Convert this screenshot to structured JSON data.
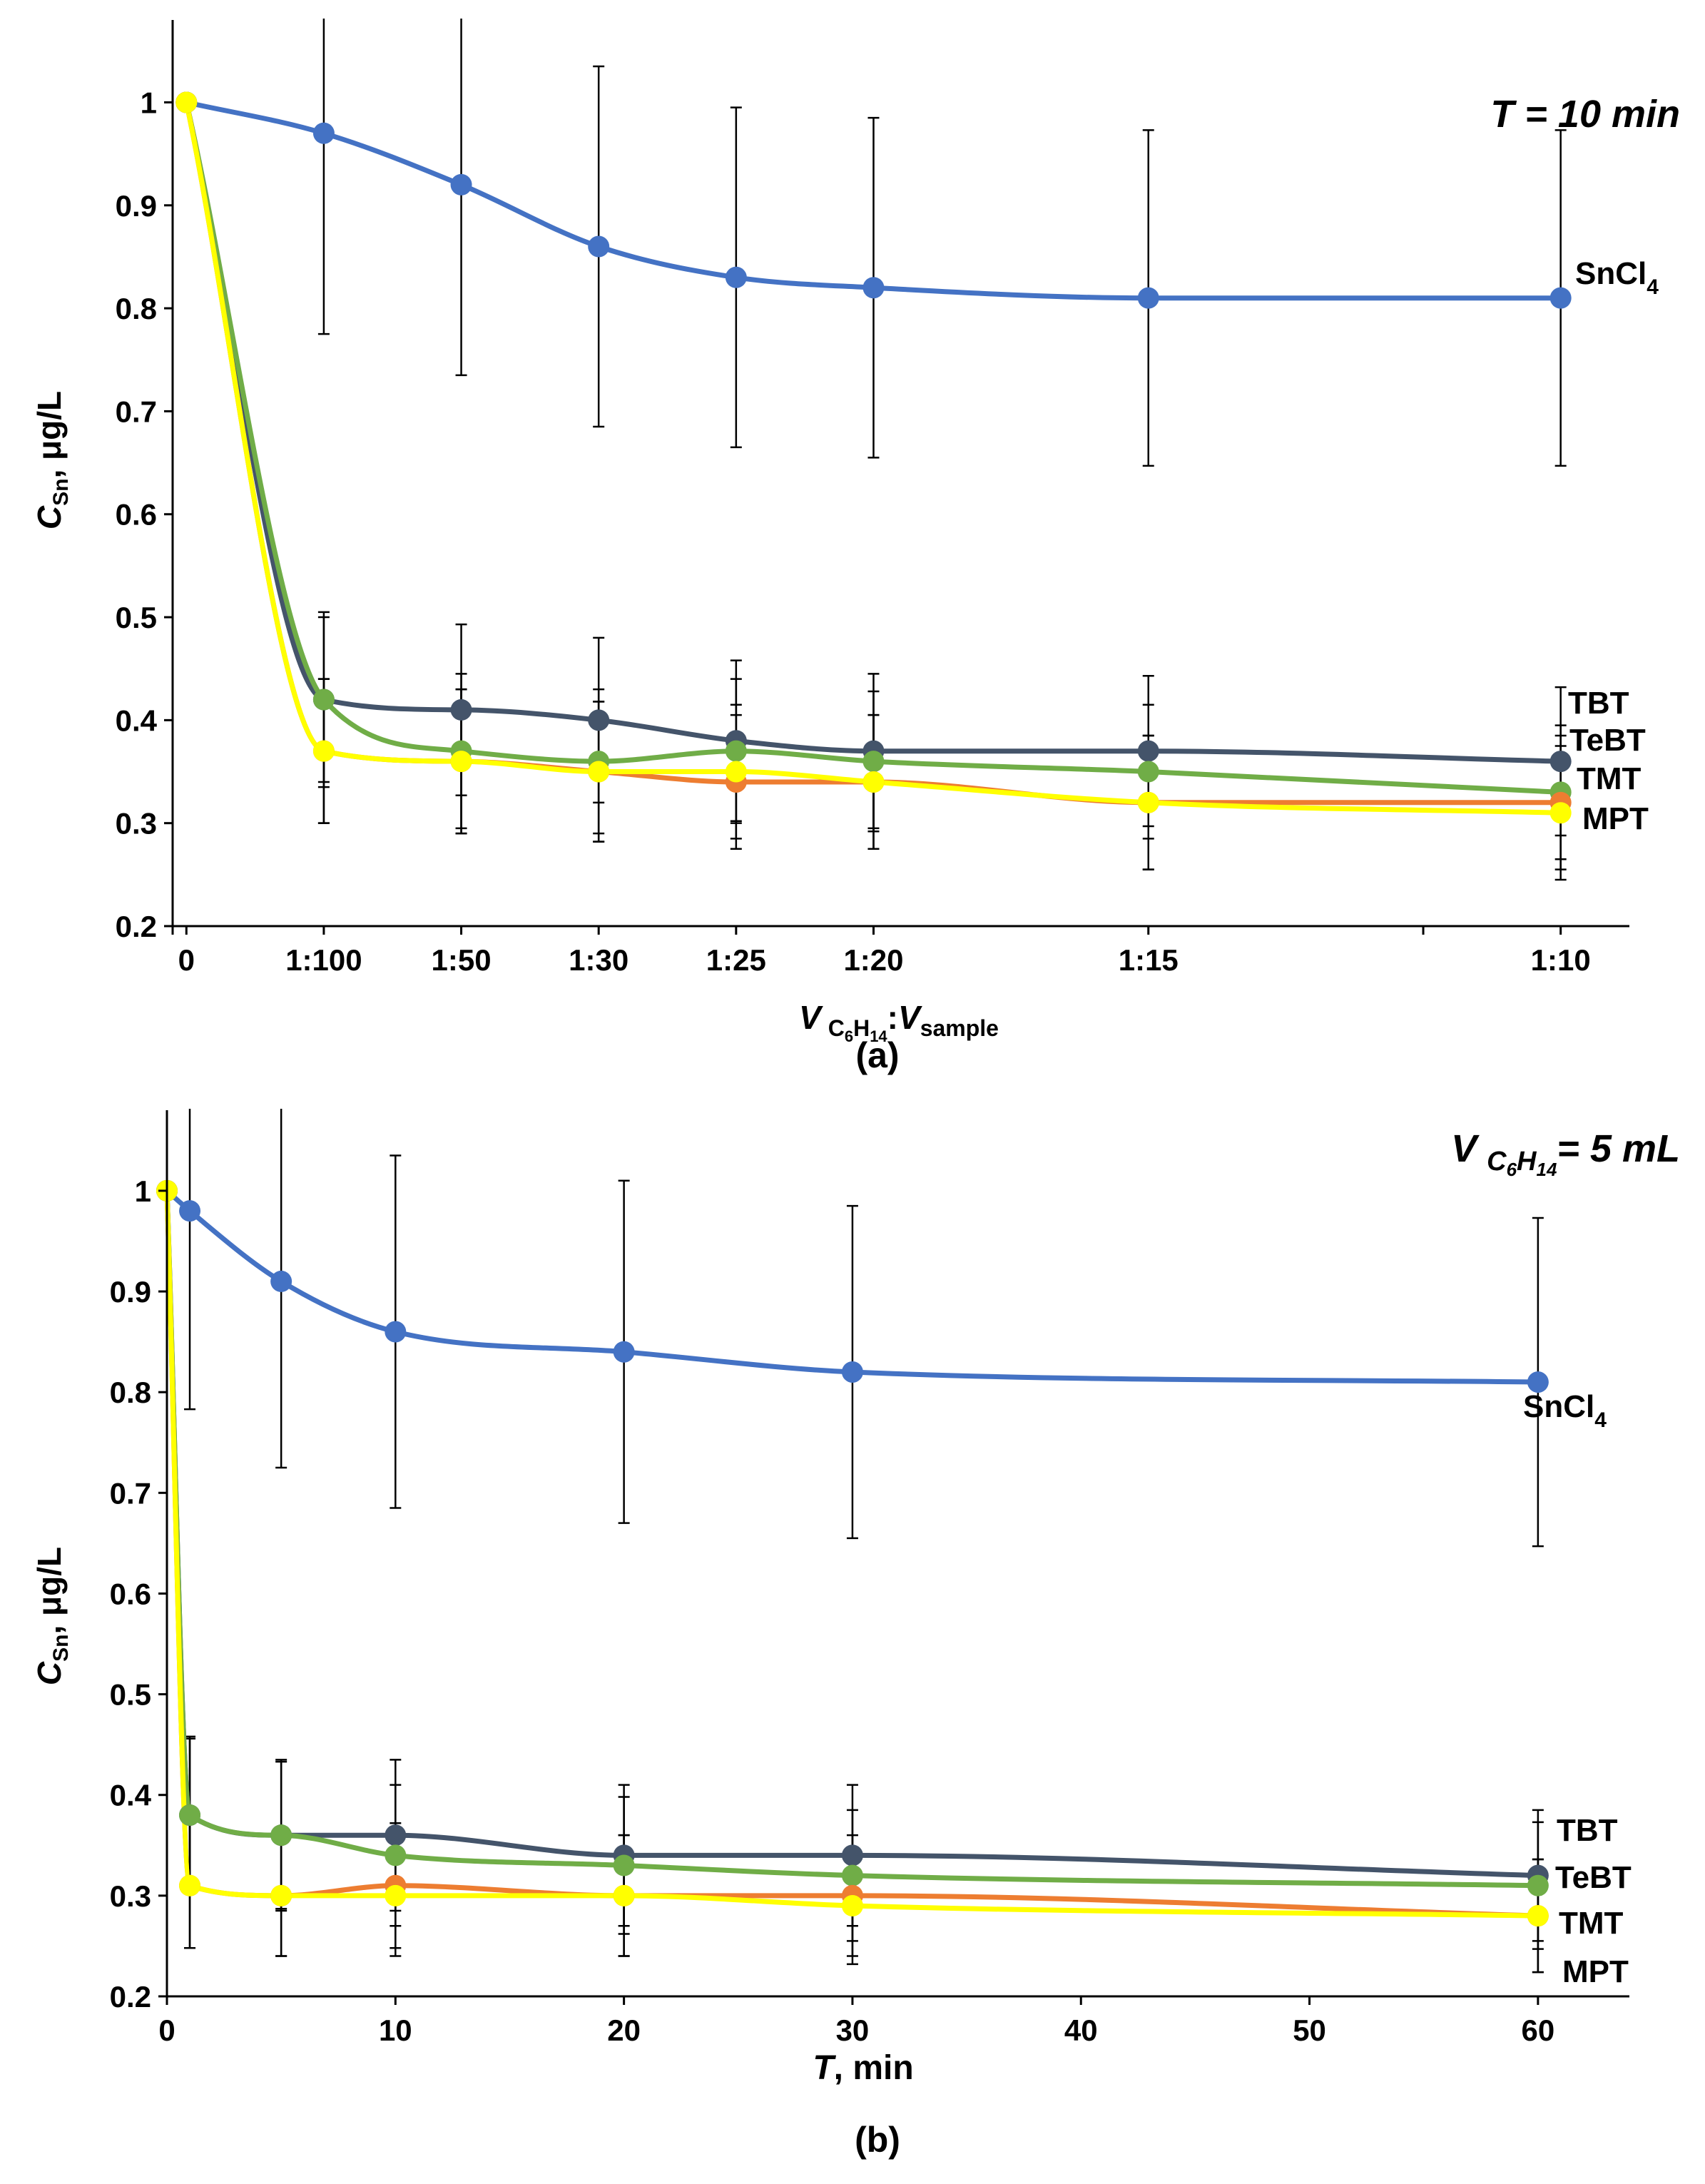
{
  "chart_data": [
    {
      "panel": "(a)",
      "type": "line",
      "annotation": "T = 10 min",
      "xlabel": {
        "main": "V",
        "sub1": "C",
        "sub2": "6",
        "sub3": "H",
        "sub4": "14",
        "sep": ":",
        "main2": "V",
        "sub5": "sample"
      },
      "ylabel": {
        "main": "C",
        "sub": "Sn",
        "unit": ", μg/L"
      },
      "x": [
        0,
        1,
        2,
        3,
        4,
        5,
        7,
        10
      ],
      "x_tick_labels": [
        "0",
        "1:100",
        "1:50",
        "1:30",
        "1:25",
        "1:20",
        "1:15",
        "1:10"
      ],
      "xlim": [
        -0.1,
        10.5
      ],
      "ylim": [
        0.2,
        1.08
      ],
      "y_ticks": [
        0.2,
        0.3,
        0.4,
        0.5,
        0.6,
        0.7,
        0.8,
        0.9,
        1
      ],
      "y_tick_labels": [
        "0.2",
        "0.3",
        "0.4",
        "0.5",
        "0.6",
        "0.7",
        "0.8",
        "0.9",
        "1"
      ],
      "series": [
        {
          "name": "SnCl4",
          "label": "SnCl",
          "label_sub": "4",
          "color": "#4472c4",
          "values": [
            1.0,
            0.97,
            0.92,
            0.86,
            0.83,
            0.82,
            0.81,
            0.81
          ],
          "err": [
            0,
            0.195,
            0.185,
            0.175,
            0.165,
            0.165,
            0.163,
            0.163
          ]
        },
        {
          "name": "TBT",
          "label": "TBT",
          "color": "#44546a",
          "values": [
            1.0,
            0.42,
            0.41,
            0.4,
            0.38,
            0.37,
            0.37,
            0.36
          ],
          "err": [
            0,
            0.085,
            0.083,
            0.08,
            0.078,
            0.075,
            0.073,
            0.072
          ]
        },
        {
          "name": "TeBT",
          "label": "TeBT",
          "color": "#70ad47",
          "values": [
            1.0,
            0.42,
            0.37,
            0.36,
            0.37,
            0.36,
            0.35,
            0.33
          ],
          "err": [
            0,
            0.08,
            0.075,
            0.07,
            0.07,
            0.068,
            0.065,
            0.065
          ]
        },
        {
          "name": "TMT",
          "label": "TMT",
          "color": "#ed7d31",
          "values": [
            1.0,
            0.37,
            0.36,
            0.35,
            0.34,
            0.34,
            0.32,
            0.32
          ],
          "err": [
            0,
            0.07,
            0.07,
            0.068,
            0.065,
            0.065,
            0.065,
            0.065
          ]
        },
        {
          "name": "MPT",
          "label": "MPT",
          "color": "#ffff00",
          "values": [
            1.0,
            0.37,
            0.36,
            0.35,
            0.35,
            0.34,
            0.32,
            0.31
          ],
          "err": [
            0,
            0.07,
            0.07,
            0.068,
            0.065,
            0.065,
            0.065,
            0.065
          ]
        }
      ],
      "caption": "(a)"
    },
    {
      "panel": "(b)",
      "type": "line",
      "annotation": {
        "main": "V",
        "sub1": "C",
        "sub2": "6",
        "sub3": "H",
        "sub4": "14",
        "rest": "= 5 mL"
      },
      "xlabel": {
        "main": "T",
        "unit": ", min"
      },
      "ylabel": {
        "main": "C",
        "sub": "Sn",
        "unit": ", μg/L"
      },
      "x": [
        0,
        1,
        5,
        10,
        20,
        30,
        60
      ],
      "xlim": [
        0,
        64
      ],
      "x_ticks": [
        0,
        10,
        20,
        30,
        40,
        50,
        60
      ],
      "x_tick_labels": [
        "0",
        "10",
        "20",
        "30",
        "40",
        "50",
        "60"
      ],
      "ylim": [
        0.2,
        1.08
      ],
      "y_ticks": [
        0.2,
        0.3,
        0.4,
        0.5,
        0.6,
        0.7,
        0.8,
        0.9,
        1
      ],
      "y_tick_labels": [
        "0.2",
        "0.3",
        "0.4",
        "0.5",
        "0.6",
        "0.7",
        "0.8",
        "0.9",
        "1"
      ],
      "series": [
        {
          "name": "SnCl4",
          "label": "SnCl",
          "label_sub": "4",
          "color": "#4472c4",
          "values": [
            1.0,
            0.98,
            0.91,
            0.86,
            0.84,
            0.82,
            0.81
          ],
          "err": [
            0,
            0.197,
            0.185,
            0.175,
            0.17,
            0.165,
            0.163
          ]
        },
        {
          "name": "TBT",
          "label": "TBT",
          "color": "#44546a",
          "values": [
            1.0,
            0.38,
            0.36,
            0.36,
            0.34,
            0.34,
            0.32
          ],
          "err": [
            0,
            0.078,
            0.075,
            0.075,
            0.07,
            0.07,
            0.065
          ]
        },
        {
          "name": "TeBT",
          "label": "TeBT",
          "color": "#70ad47",
          "values": [
            1.0,
            0.38,
            0.36,
            0.34,
            0.33,
            0.32,
            0.31
          ],
          "err": [
            0,
            0.076,
            0.073,
            0.07,
            0.068,
            0.065,
            0.063
          ]
        },
        {
          "name": "TMT",
          "label": "TMT",
          "color": "#ed7d31",
          "values": [
            1.0,
            0.31,
            0.3,
            0.31,
            0.3,
            0.3,
            0.28
          ],
          "err": [
            0,
            0.062,
            0.06,
            0.062,
            0.06,
            0.06,
            0.056
          ]
        },
        {
          "name": "MPT",
          "label": "MPT",
          "color": "#ffff00",
          "values": [
            1.0,
            0.31,
            0.3,
            0.3,
            0.3,
            0.29,
            0.28
          ],
          "err": [
            0,
            0.062,
            0.06,
            0.06,
            0.06,
            0.058,
            0.056
          ]
        }
      ],
      "caption": "(b)"
    }
  ]
}
